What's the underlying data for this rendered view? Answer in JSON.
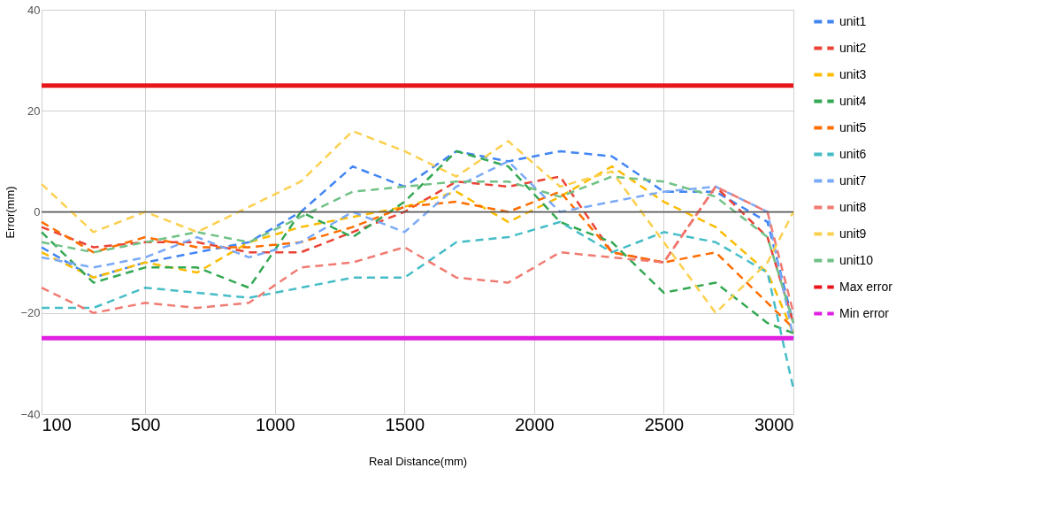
{
  "chart_data": {
    "type": "line",
    "xlabel": "Real Distance(mm)",
    "ylabel": "Error(mm)",
    "x": [
      100,
      300,
      500,
      700,
      900,
      1100,
      1300,
      1500,
      1700,
      1900,
      2100,
      2300,
      2500,
      2700,
      2900,
      3000
    ],
    "series": [
      {
        "name": "unit1",
        "color": "#4285f4",
        "values": [
          -7,
          -13,
          -10,
          -8,
          -6,
          0,
          9,
          5,
          12,
          10,
          12,
          11,
          4,
          4,
          -2,
          -22
        ]
      },
      {
        "name": "unit2",
        "color": "#ea4335",
        "values": [
          -3,
          -7,
          -6,
          -6,
          -8,
          -8,
          -4,
          0,
          6,
          5,
          7,
          -8,
          -10,
          5,
          -5,
          -22
        ]
      },
      {
        "name": "unit3",
        "color": "#fbbc04",
        "values": [
          -8,
          -13,
          -10,
          -12,
          -6,
          -3,
          -1,
          1,
          4,
          -2,
          3,
          9,
          2,
          -3,
          -12,
          -24
        ]
      },
      {
        "name": "unit4",
        "color": "#34a853",
        "values": [
          -4,
          -14,
          -11,
          -11,
          -15,
          0,
          -5,
          2,
          12,
          9,
          -2,
          -6,
          -16,
          -14,
          -22,
          -24
        ]
      },
      {
        "name": "unit5",
        "color": "#ff6d01",
        "values": [
          -2,
          -8,
          -5,
          -7,
          -7,
          -6,
          -3,
          1,
          2,
          0,
          4,
          -8,
          -10,
          -8,
          -18,
          -23
        ]
      },
      {
        "name": "unit6",
        "color": "#46bdc6",
        "values": [
          -19,
          -19,
          -15,
          -16,
          -17,
          -15,
          -13,
          -13,
          -6,
          -5,
          -2,
          -8,
          -4,
          -6,
          -12,
          -35
        ]
      },
      {
        "name": "unit7",
        "color": "#7baaf7",
        "values": [
          -9,
          -11,
          -9,
          -5,
          -9,
          -6,
          0,
          -4,
          5,
          10,
          0,
          2,
          4,
          5,
          0,
          -25
        ]
      },
      {
        "name": "unit8",
        "color": "#f07b72",
        "values": [
          -15,
          -20,
          -18,
          -19,
          -18,
          -11,
          -10,
          -7,
          -13,
          -14,
          -8,
          -9,
          -10,
          5,
          0,
          -20
        ]
      },
      {
        "name": "unit9",
        "color": "#fcd04f",
        "values": [
          5.5,
          -4,
          0,
          -4,
          1,
          6,
          16,
          12,
          7,
          14,
          5,
          8,
          -6,
          -20,
          -10,
          0
        ]
      },
      {
        "name": "unit10",
        "color": "#71c287",
        "values": [
          -6,
          -8,
          -6,
          -4,
          -6,
          -1,
          4,
          5,
          6,
          6,
          3,
          7,
          6,
          3,
          -5,
          -22
        ]
      },
      {
        "name": "Max error",
        "color": "#e8151b",
        "line_style": "solid",
        "values": [
          25,
          25,
          25,
          25,
          25,
          25,
          25,
          25,
          25,
          25,
          25,
          25,
          25,
          25,
          25,
          25
        ]
      },
      {
        "name": "Min error",
        "color": "#e020e0",
        "line_style": "solid",
        "values": [
          -25,
          -25,
          -25,
          -25,
          -25,
          -25,
          -25,
          -25,
          -25,
          -25,
          -25,
          -25,
          -25,
          -25,
          -25,
          -25
        ]
      }
    ],
    "xlim": [
      100,
      3000
    ],
    "xticks": [
      100,
      500,
      1000,
      1500,
      2000,
      2500,
      3000
    ],
    "ylim": [
      -40,
      40
    ],
    "yticks": [
      -40,
      -20,
      0,
      20,
      40
    ],
    "ref_lines": [
      {
        "axis": "y",
        "value": 0,
        "color": "#555555"
      }
    ],
    "grid": true,
    "legend": "right",
    "line_style": "dashed",
    "marker": "none"
  }
}
